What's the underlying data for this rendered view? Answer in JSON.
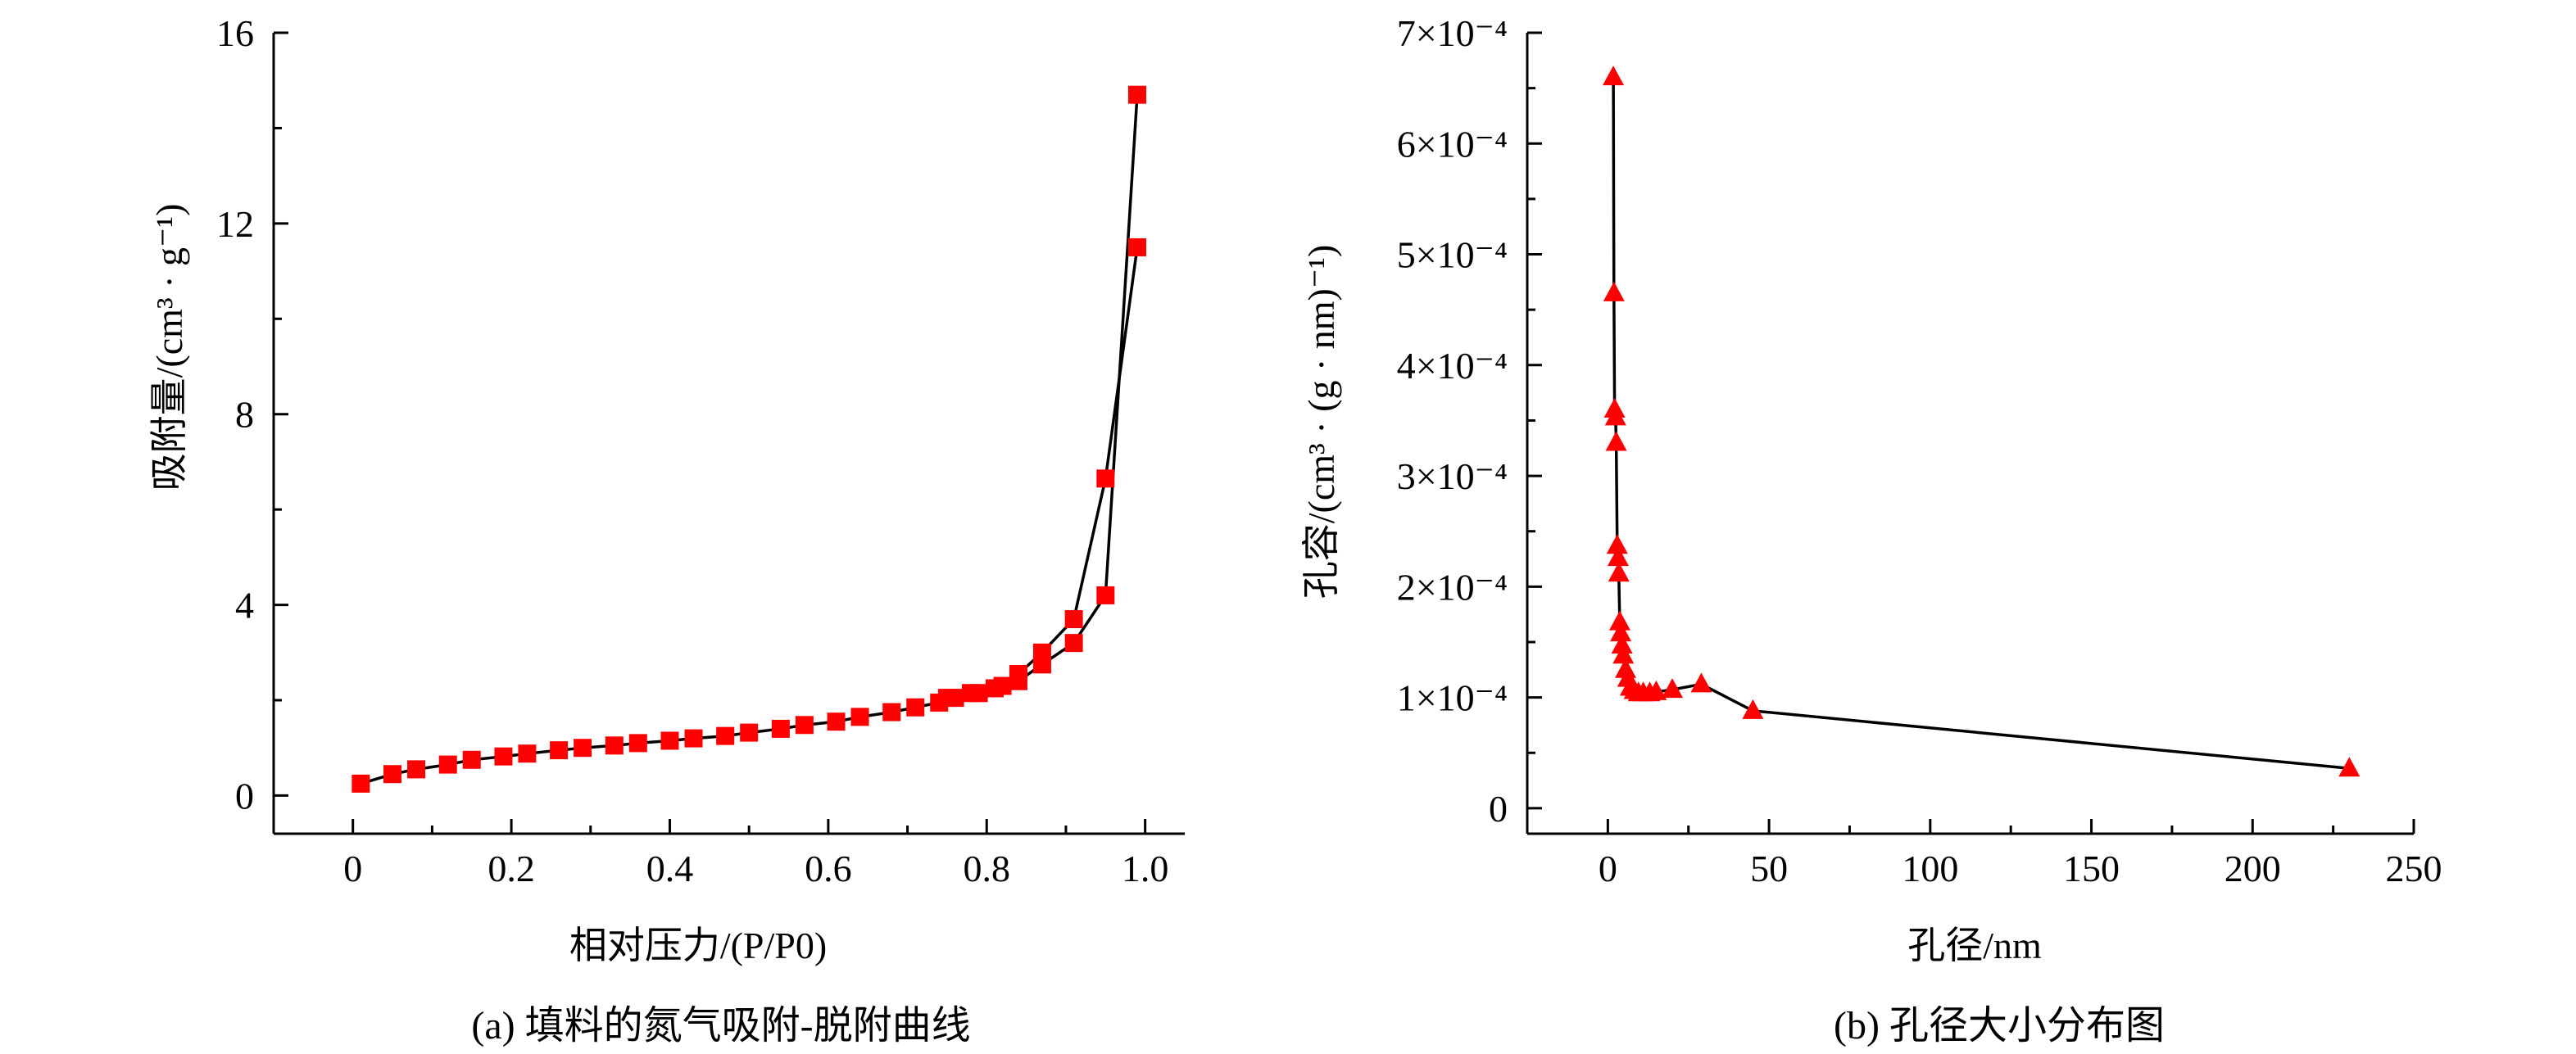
{
  "chart_data": [
    {
      "type": "scatter",
      "ylabel": "吸附量/(cm³ · g⁻¹)",
      "xlabel": "相对压力/(P/P0)",
      "caption": "(a) 填料的氮气吸附-脱附曲线",
      "xlim": [
        -0.1,
        1.05
      ],
      "ylim": [
        -0.8,
        16
      ],
      "xticks": [
        0,
        0.2,
        0.4,
        0.6,
        0.8,
        1.0
      ],
      "xtick_labels": [
        "0",
        "0.2",
        "0.4",
        "0.6",
        "0.8",
        "1.0"
      ],
      "yticks": [
        0,
        4,
        8,
        12,
        16
      ],
      "ytick_labels": [
        "0",
        "4",
        "8",
        "12",
        "16"
      ],
      "marker": "square",
      "color": "#ff0000",
      "grid": false,
      "series": [
        {
          "x": [
            0.01,
            0.05,
            0.08,
            0.12,
            0.15,
            0.19,
            0.22,
            0.26,
            0.29,
            0.33,
            0.36,
            0.4,
            0.43,
            0.47,
            0.5,
            0.54,
            0.57,
            0.61,
            0.64,
            0.68,
            0.71,
            0.74,
            0.76,
            0.78,
            0.81,
            0.84,
            0.87,
            0.91,
            0.95,
            0.99
          ],
          "y": [
            0.25,
            0.45,
            0.55,
            0.65,
            0.75,
            0.82,
            0.88,
            0.95,
            1.0,
            1.05,
            1.1,
            1.15,
            1.2,
            1.25,
            1.32,
            1.4,
            1.48,
            1.55,
            1.65,
            1.75,
            1.85,
            1.95,
            2.05,
            2.15,
            2.25,
            2.4,
            2.75,
            3.2,
            4.2,
            14.7
          ]
        },
        {
          "x": [
            0.75,
            0.79,
            0.82,
            0.84,
            0.87,
            0.91,
            0.95,
            0.99
          ],
          "y": [
            2.05,
            2.15,
            2.3,
            2.55,
            3.0,
            3.7,
            6.65,
            11.5
          ]
        }
      ]
    },
    {
      "type": "scatter",
      "ylabel": "孔容/(cm³ · (g · nm)⁻¹)",
      "xlabel": "孔径/nm",
      "caption": "(b) 孔径大小分布图",
      "xlim": [
        -25,
        250
      ],
      "ylim": [
        -2.3e-05,
        0.0007
      ],
      "xticks": [
        0,
        50,
        100,
        150,
        200,
        250
      ],
      "xtick_labels": [
        "0",
        "50",
        "100",
        "150",
        "200",
        "250"
      ],
      "yticks": [
        0,
        0.0001,
        0.0002,
        0.0003,
        0.0004,
        0.0005,
        0.0006,
        0.0007
      ],
      "ytick_labels": [
        "0",
        "1×10⁻⁴",
        "2×10⁻⁴",
        "3×10⁻⁴",
        "4×10⁻⁴",
        "5×10⁻⁴",
        "6×10⁻⁴",
        "7×10⁻⁴"
      ],
      "marker": "triangle",
      "color": "#ff0000",
      "grid": false,
      "series": [
        {
          "x": [
            1.7,
            1.9,
            2.1,
            2.4,
            2.6,
            2.9,
            3.2,
            3.4,
            3.7,
            4.0,
            4.4,
            4.8,
            5.5,
            6.2,
            7.0,
            8.2,
            9.5,
            11.0,
            13.0,
            15.0,
            20.0,
            29.0,
            45.0,
            230.0
          ],
          "y": [
            0.00066,
            0.000465,
            0.00036,
            0.000353,
            0.00033,
            0.000237,
            0.000226,
            0.000212,
            0.000168,
            0.000158,
            0.000147,
            0.000138,
            0.000125,
            0.000117,
            0.000109,
            0.000106,
            0.000104,
            0.000104,
            0.000104,
            0.000105,
            0.000107,
            0.000112,
            8.8e-05,
            3.6e-05
          ]
        }
      ]
    }
  ]
}
